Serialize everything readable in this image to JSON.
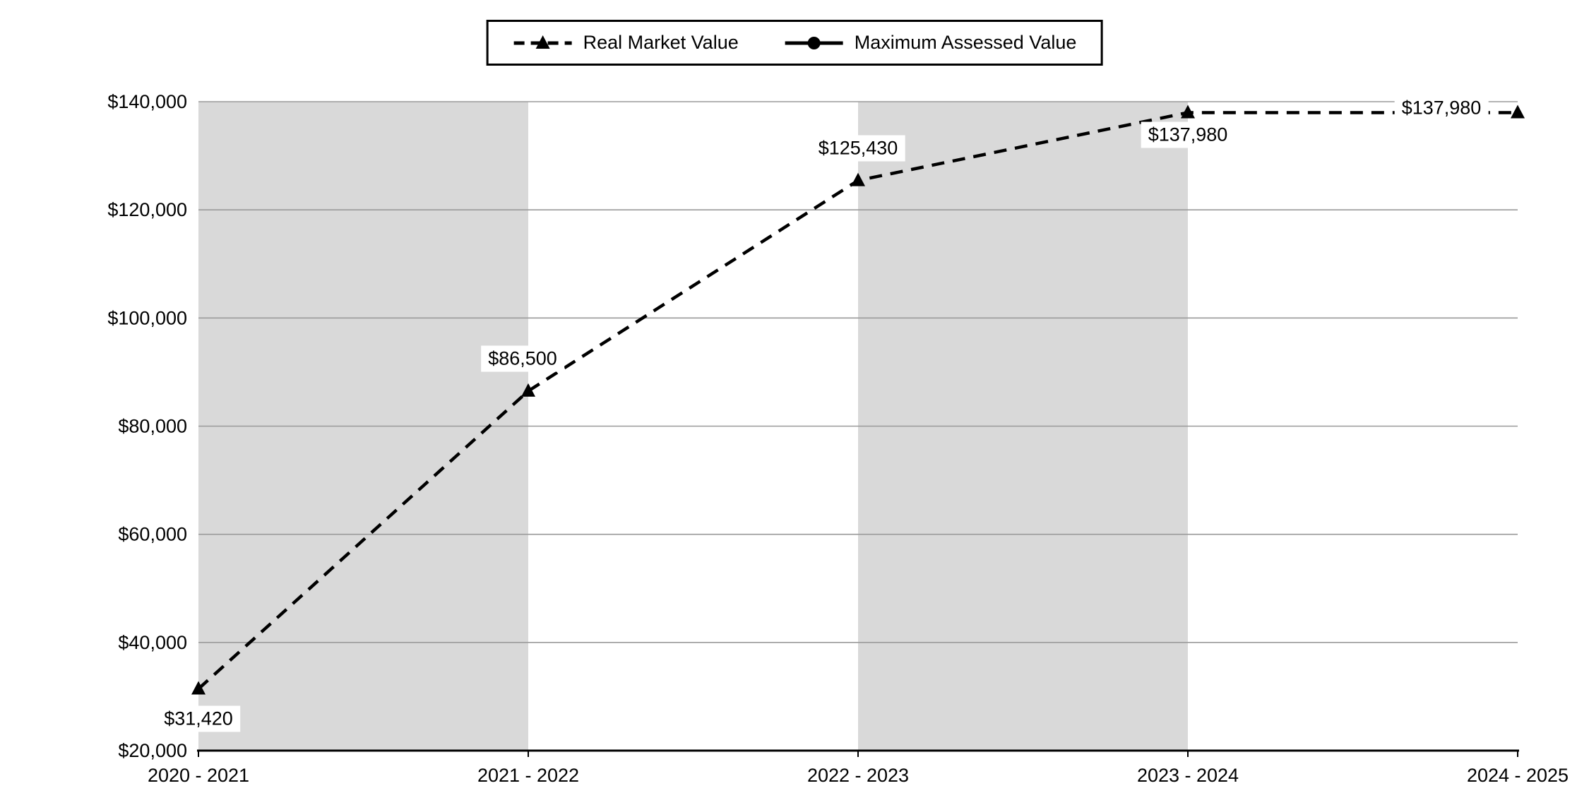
{
  "chart_data": {
    "type": "line",
    "categories": [
      "2020 - 2021",
      "2021 - 2022",
      "2022 - 2023",
      "2023 - 2024",
      "2024 - 2025"
    ],
    "series": [
      {
        "name": "Real Market Value",
        "line_style": "dashed",
        "marker": "triangle",
        "color": "#000000",
        "values": [
          31420,
          86500,
          125430,
          137980,
          137980
        ],
        "labels": [
          "$31,420",
          "$86,500",
          "$125,430",
          "$137,980",
          "$137,980"
        ]
      }
    ],
    "legend": [
      {
        "label": "Real Market Value",
        "line": "dashed",
        "marker": "triangle"
      },
      {
        "label": "Maximum Assessed Value",
        "line": "solid",
        "marker": "circle"
      }
    ],
    "legend_position": "top",
    "title": "",
    "xlabel": "",
    "ylabel": "",
    "ylim": [
      20000,
      140000
    ],
    "ytick_step": 20000,
    "yticks": [
      "$140,000",
      "$120,000",
      "$100,000",
      "$80,000",
      "$60,000",
      "$40,000",
      "$20,000"
    ],
    "grid": true,
    "grid_color": "#9a9a9a",
    "axis_color": "#000000",
    "band_color": "#d9d9d9",
    "bands": [
      [
        0,
        1
      ],
      [
        2,
        3
      ]
    ]
  }
}
